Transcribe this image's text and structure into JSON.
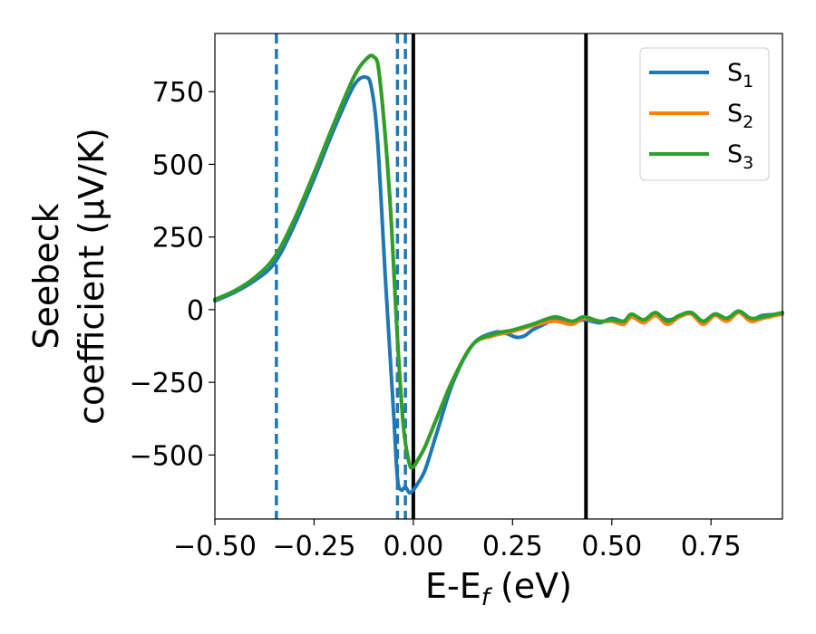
{
  "chart_data": {
    "type": "line",
    "xlabel": {
      "main": "E-E",
      "sub": "f",
      "tail": " (eV)"
    },
    "ylabel": {
      "line1": "Seebeck",
      "line2": "coefficient  (μV/K)"
    },
    "xlim": [
      -0.5,
      0.93
    ],
    "ylim": [
      -720,
      950
    ],
    "xticks": [
      -0.5,
      -0.25,
      0.0,
      0.25,
      0.5,
      0.75
    ],
    "xtick_labels": [
      "−0.50",
      "−0.25",
      "0.00",
      "0.25",
      "0.50",
      "0.75"
    ],
    "yticks": [
      750,
      500,
      250,
      0,
      -250,
      -500
    ],
    "ytick_labels": [
      "750",
      "500",
      "250",
      "0",
      "−250",
      "−500"
    ],
    "grid": false,
    "legend_position": "top-right",
    "series": [
      {
        "name": "S",
        "sub": "1",
        "color": "#1f77b4",
        "x": [
          -0.5,
          -0.45,
          -0.4,
          -0.35,
          -0.3,
          -0.25,
          -0.2,
          -0.15,
          -0.12,
          -0.105,
          -0.09,
          -0.07,
          -0.05,
          -0.04,
          -0.03,
          -0.02,
          -0.01,
          0.0,
          0.01,
          0.03,
          0.06,
          0.1,
          0.15,
          0.2,
          0.23,
          0.26,
          0.28,
          0.3,
          0.33,
          0.36,
          0.4,
          0.43,
          0.47,
          0.5,
          0.53,
          0.55,
          0.58,
          0.61,
          0.64,
          0.67,
          0.7,
          0.73,
          0.76,
          0.79,
          0.82,
          0.85,
          0.88,
          0.93
        ],
        "y": [
          30,
          60,
          100,
          160,
          290,
          450,
          620,
          770,
          800,
          760,
          580,
          100,
          -350,
          -580,
          -620,
          -610,
          -630,
          -620,
          -600,
          -550,
          -420,
          -250,
          -120,
          -80,
          -80,
          -95,
          -90,
          -70,
          -50,
          -30,
          -45,
          -35,
          -45,
          -30,
          -40,
          -20,
          -40,
          -15,
          -35,
          -25,
          -10,
          -40,
          -15,
          -30,
          -5,
          -35,
          -20,
          -15
        ]
      },
      {
        "name": "S",
        "sub": "2",
        "color": "#ff7f0e",
        "x": [
          -0.5,
          -0.45,
          -0.4,
          -0.35,
          -0.3,
          -0.25,
          -0.2,
          -0.15,
          -0.12,
          -0.1,
          -0.085,
          -0.06,
          -0.04,
          -0.025,
          -0.01,
          0.0,
          0.01,
          0.03,
          0.06,
          0.1,
          0.15,
          0.2,
          0.25,
          0.3,
          0.33,
          0.36,
          0.4,
          0.43,
          0.47,
          0.5,
          0.53,
          0.55,
          0.58,
          0.61,
          0.64,
          0.67,
          0.7,
          0.73,
          0.76,
          0.79,
          0.82,
          0.85,
          0.88,
          0.93
        ],
        "y": [
          35,
          65,
          110,
          180,
          310,
          470,
          640,
          800,
          860,
          870,
          800,
          400,
          -100,
          -400,
          -530,
          -540,
          -520,
          -470,
          -370,
          -240,
          -120,
          -90,
          -75,
          -55,
          -45,
          -40,
          -50,
          -30,
          -40,
          -40,
          -50,
          -25,
          -45,
          -20,
          -50,
          -25,
          -15,
          -50,
          -20,
          -40,
          -10,
          -40,
          -30,
          -15
        ]
      },
      {
        "name": "S",
        "sub": "3",
        "color": "#2ca02c",
        "x": [
          -0.5,
          -0.45,
          -0.4,
          -0.35,
          -0.3,
          -0.25,
          -0.2,
          -0.15,
          -0.12,
          -0.1,
          -0.085,
          -0.06,
          -0.04,
          -0.025,
          -0.01,
          0.0,
          0.01,
          0.03,
          0.06,
          0.1,
          0.15,
          0.2,
          0.25,
          0.3,
          0.33,
          0.36,
          0.4,
          0.43,
          0.47,
          0.5,
          0.53,
          0.55,
          0.58,
          0.61,
          0.64,
          0.67,
          0.7,
          0.73,
          0.76,
          0.79,
          0.82,
          0.85,
          0.88,
          0.93
        ],
        "y": [
          35,
          65,
          110,
          180,
          310,
          470,
          640,
          800,
          860,
          870,
          800,
          400,
          -100,
          -400,
          -530,
          -540,
          -520,
          -470,
          -370,
          -240,
          -120,
          -85,
          -70,
          -50,
          -35,
          -25,
          -40,
          -25,
          -40,
          -35,
          -40,
          -15,
          -35,
          -10,
          -40,
          -20,
          -10,
          -40,
          -15,
          -30,
          -5,
          -30,
          -25,
          -10
        ]
      }
    ],
    "vlines": [
      {
        "x": -0.345,
        "color": "#1f77b4",
        "style": "dashed"
      },
      {
        "x": -0.04,
        "color": "#1f77b4",
        "style": "dashed"
      },
      {
        "x": -0.02,
        "color": "#1f77b4",
        "style": "dashed"
      },
      {
        "x": 0.0,
        "color": "#000000",
        "style": "solid"
      },
      {
        "x": 0.435,
        "color": "#000000",
        "style": "solid"
      }
    ]
  }
}
